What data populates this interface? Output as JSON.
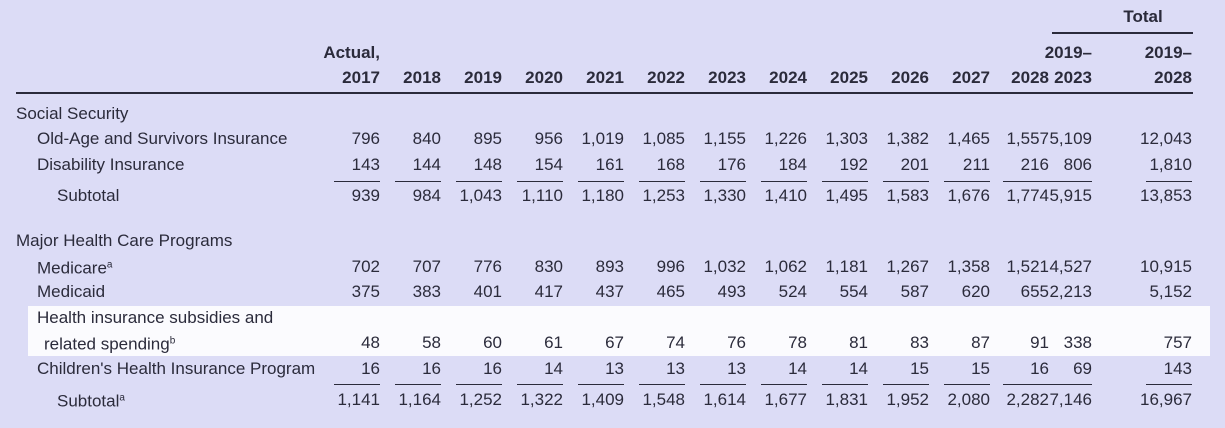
{
  "header": {
    "total_label": "Total",
    "columns": [
      [
        "Actual,",
        "2017"
      ],
      [
        "2018"
      ],
      [
        "2019"
      ],
      [
        "2020"
      ],
      [
        "2021"
      ],
      [
        "2022"
      ],
      [
        "2023"
      ],
      [
        "2024"
      ],
      [
        "2025"
      ],
      [
        "2026"
      ],
      [
        "2027"
      ],
      [
        "2028"
      ],
      [
        "2019–",
        "2023"
      ],
      [
        "2019–",
        "2028"
      ]
    ]
  },
  "sections": [
    {
      "title": "Social Security",
      "rows": [
        {
          "label": [
            "Old-Age and Survivors Insurance"
          ],
          "values": [
            "796",
            "840",
            "895",
            "956",
            "1,019",
            "1,085",
            "1,155",
            "1,226",
            "1,303",
            "1,382",
            "1,465",
            "1,557",
            "5,109",
            "12,043"
          ]
        },
        {
          "label": [
            "Disability Insurance"
          ],
          "values": [
            "143",
            "144",
            "148",
            "154",
            "161",
            "168",
            "176",
            "184",
            "192",
            "201",
            "211",
            "216",
            "806",
            "1,810"
          ]
        }
      ],
      "subtotal": {
        "label": "Subtotal",
        "values": [
          "939",
          "984",
          "1,043",
          "1,110",
          "1,180",
          "1,253",
          "1,330",
          "1,410",
          "1,495",
          "1,583",
          "1,676",
          "1,774",
          "5,915",
          "13,853"
        ]
      }
    },
    {
      "title": "Major Health Care Programs",
      "rows": [
        {
          "label": [
            "Medicare"
          ],
          "note": "a",
          "values": [
            "702",
            "707",
            "776",
            "830",
            "893",
            "996",
            "1,032",
            "1,062",
            "1,181",
            "1,267",
            "1,358",
            "1,521",
            "4,527",
            "10,915"
          ]
        },
        {
          "label": [
            "Medicaid"
          ],
          "values": [
            "375",
            "383",
            "401",
            "417",
            "437",
            "465",
            "493",
            "524",
            "554",
            "587",
            "620",
            "655",
            "2,213",
            "5,152"
          ]
        },
        {
          "label": [
            "Health insurance subsidies and",
            "related spending"
          ],
          "note": "b",
          "values": [
            "48",
            "58",
            "60",
            "61",
            "67",
            "74",
            "76",
            "78",
            "81",
            "83",
            "87",
            "91",
            "338",
            "757"
          ]
        },
        {
          "label": [
            "Children's Health Insurance Program"
          ],
          "values": [
            "16",
            "16",
            "16",
            "14",
            "13",
            "13",
            "13",
            "14",
            "14",
            "15",
            "15",
            "16",
            "69",
            "143"
          ]
        }
      ],
      "subtotal": {
        "label": "Subtotal",
        "note": "a",
        "values": [
          "1,141",
          "1,164",
          "1,252",
          "1,322",
          "1,409",
          "1,548",
          "1,614",
          "1,677",
          "1,831",
          "1,952",
          "2,080",
          "2,282",
          "7,146",
          "16,967"
        ]
      }
    }
  ]
}
